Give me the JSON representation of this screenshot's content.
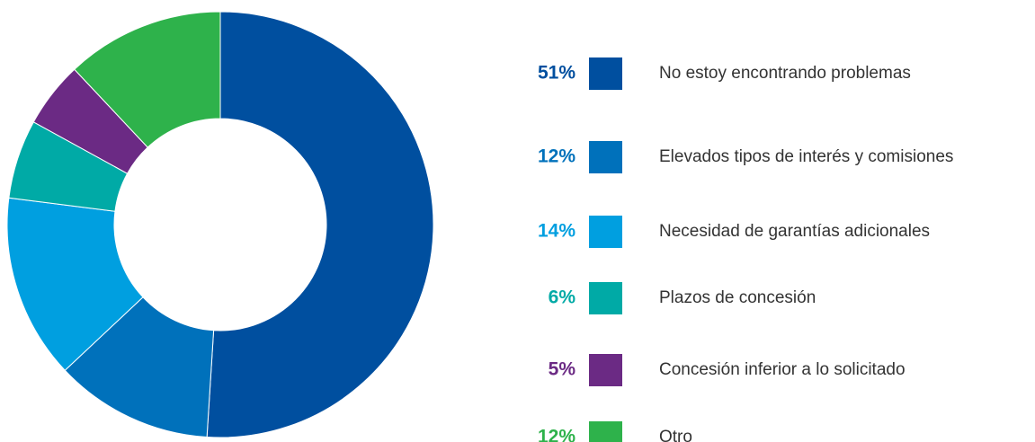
{
  "chart_data": {
    "type": "donut",
    "categories": [
      "No estoy encontrando problemas",
      "Elevados tipos de interés y comisiones",
      "Necesidad de garantías adicionales",
      "Plazos de concesión",
      "Concesión inferior a lo solicitado",
      "Otro"
    ],
    "values": [
      51,
      12,
      14,
      6,
      5,
      12
    ],
    "value_labels": [
      "51%",
      "12%",
      "14%",
      "6%",
      "5%",
      "12%"
    ],
    "colors": [
      "#004f9f",
      "#0071bb",
      "#009fe0",
      "#00aaa6",
      "#6b2a84",
      "#2eb24b"
    ]
  }
}
